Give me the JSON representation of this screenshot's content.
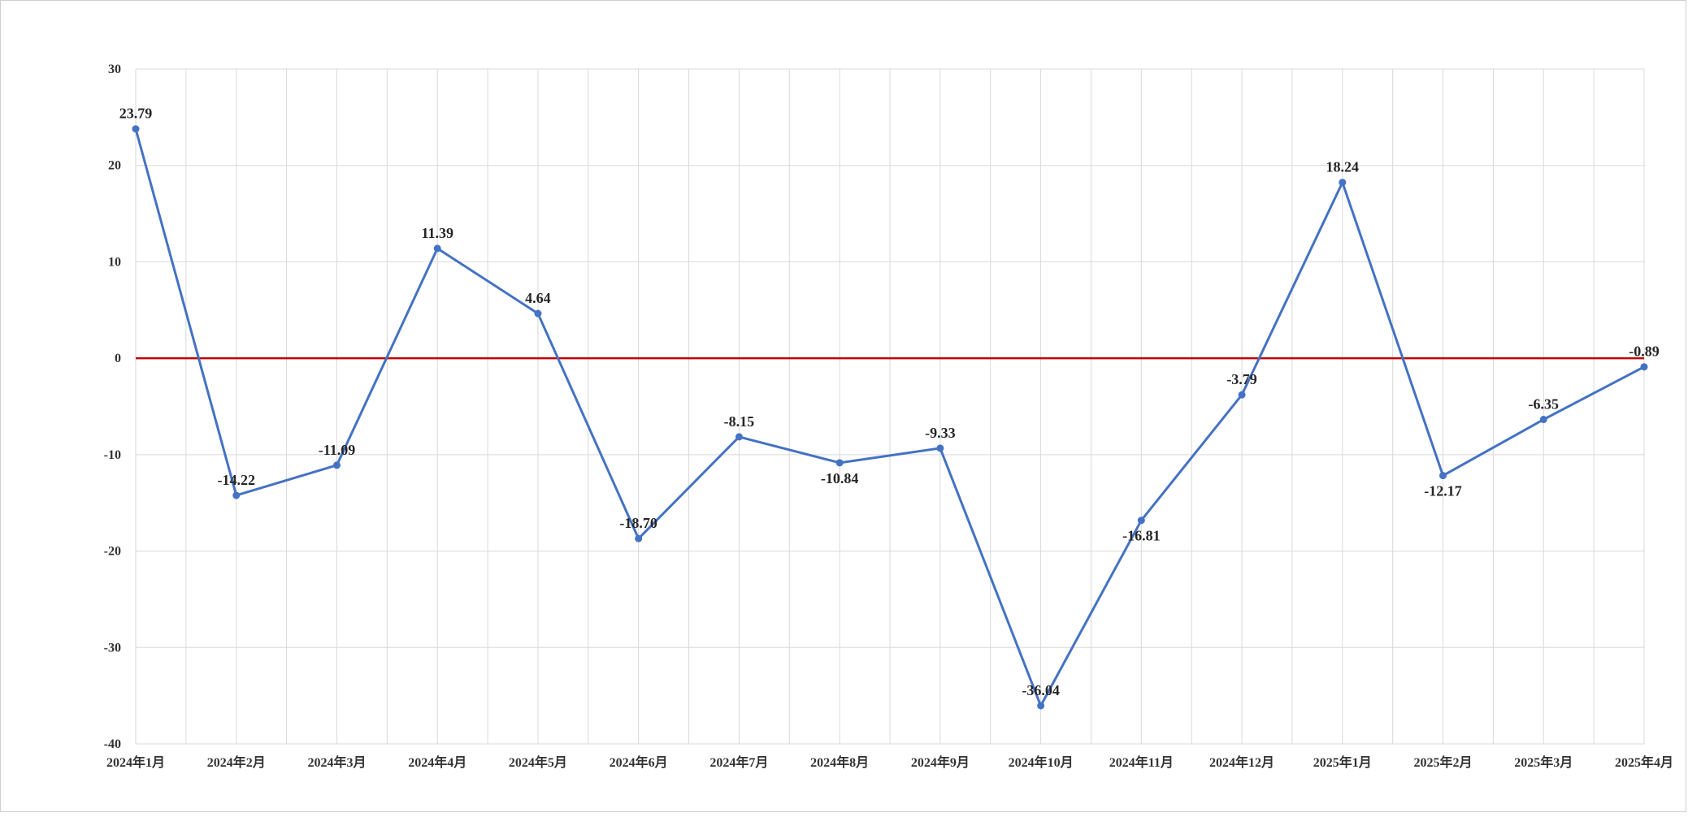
{
  "chart_data": {
    "type": "line",
    "categories": [
      "2024年1月",
      "2024年2月",
      "2024年3月",
      "2024年4月",
      "2024年5月",
      "2024年6月",
      "2024年7月",
      "2024年8月",
      "2024年9月",
      "2024年10月",
      "2024年11月",
      "2024年12月",
      "2025年1月",
      "2025年2月",
      "2025年3月",
      "2025年4月"
    ],
    "series": [
      {
        "values": [
          23.79,
          -14.22,
          -11.09,
          11.39,
          4.64,
          -18.7,
          -8.15,
          -10.84,
          -9.33,
          -36.04,
          -16.81,
          -3.79,
          18.24,
          -12.17,
          -6.35,
          -0.89
        ],
        "labels": [
          "23.79",
          "-14.22",
          "-11.09",
          "11.39",
          "4.64",
          "-18.70",
          "-8.15",
          "-10.84",
          "-9.33",
          "-36.04",
          "-16.81",
          "-3.79",
          "18.24",
          "-12.17",
          "-6.35",
          "-0.89"
        ],
        "label_positions": [
          "above",
          "above",
          "above",
          "above",
          "above",
          "above",
          "above",
          "below",
          "above",
          "above",
          "below",
          "above",
          "above",
          "below",
          "above",
          "above"
        ],
        "color": "#4472C4"
      }
    ],
    "reference_line": {
      "value": 0,
      "color": "#C00000"
    },
    "ylim": [
      -40,
      30
    ],
    "yticks": [
      30,
      20,
      10,
      0,
      -10,
      -20,
      -30,
      -40
    ],
    "grid": true,
    "legend": "none",
    "title": "",
    "xlabel": "",
    "ylabel": ""
  }
}
